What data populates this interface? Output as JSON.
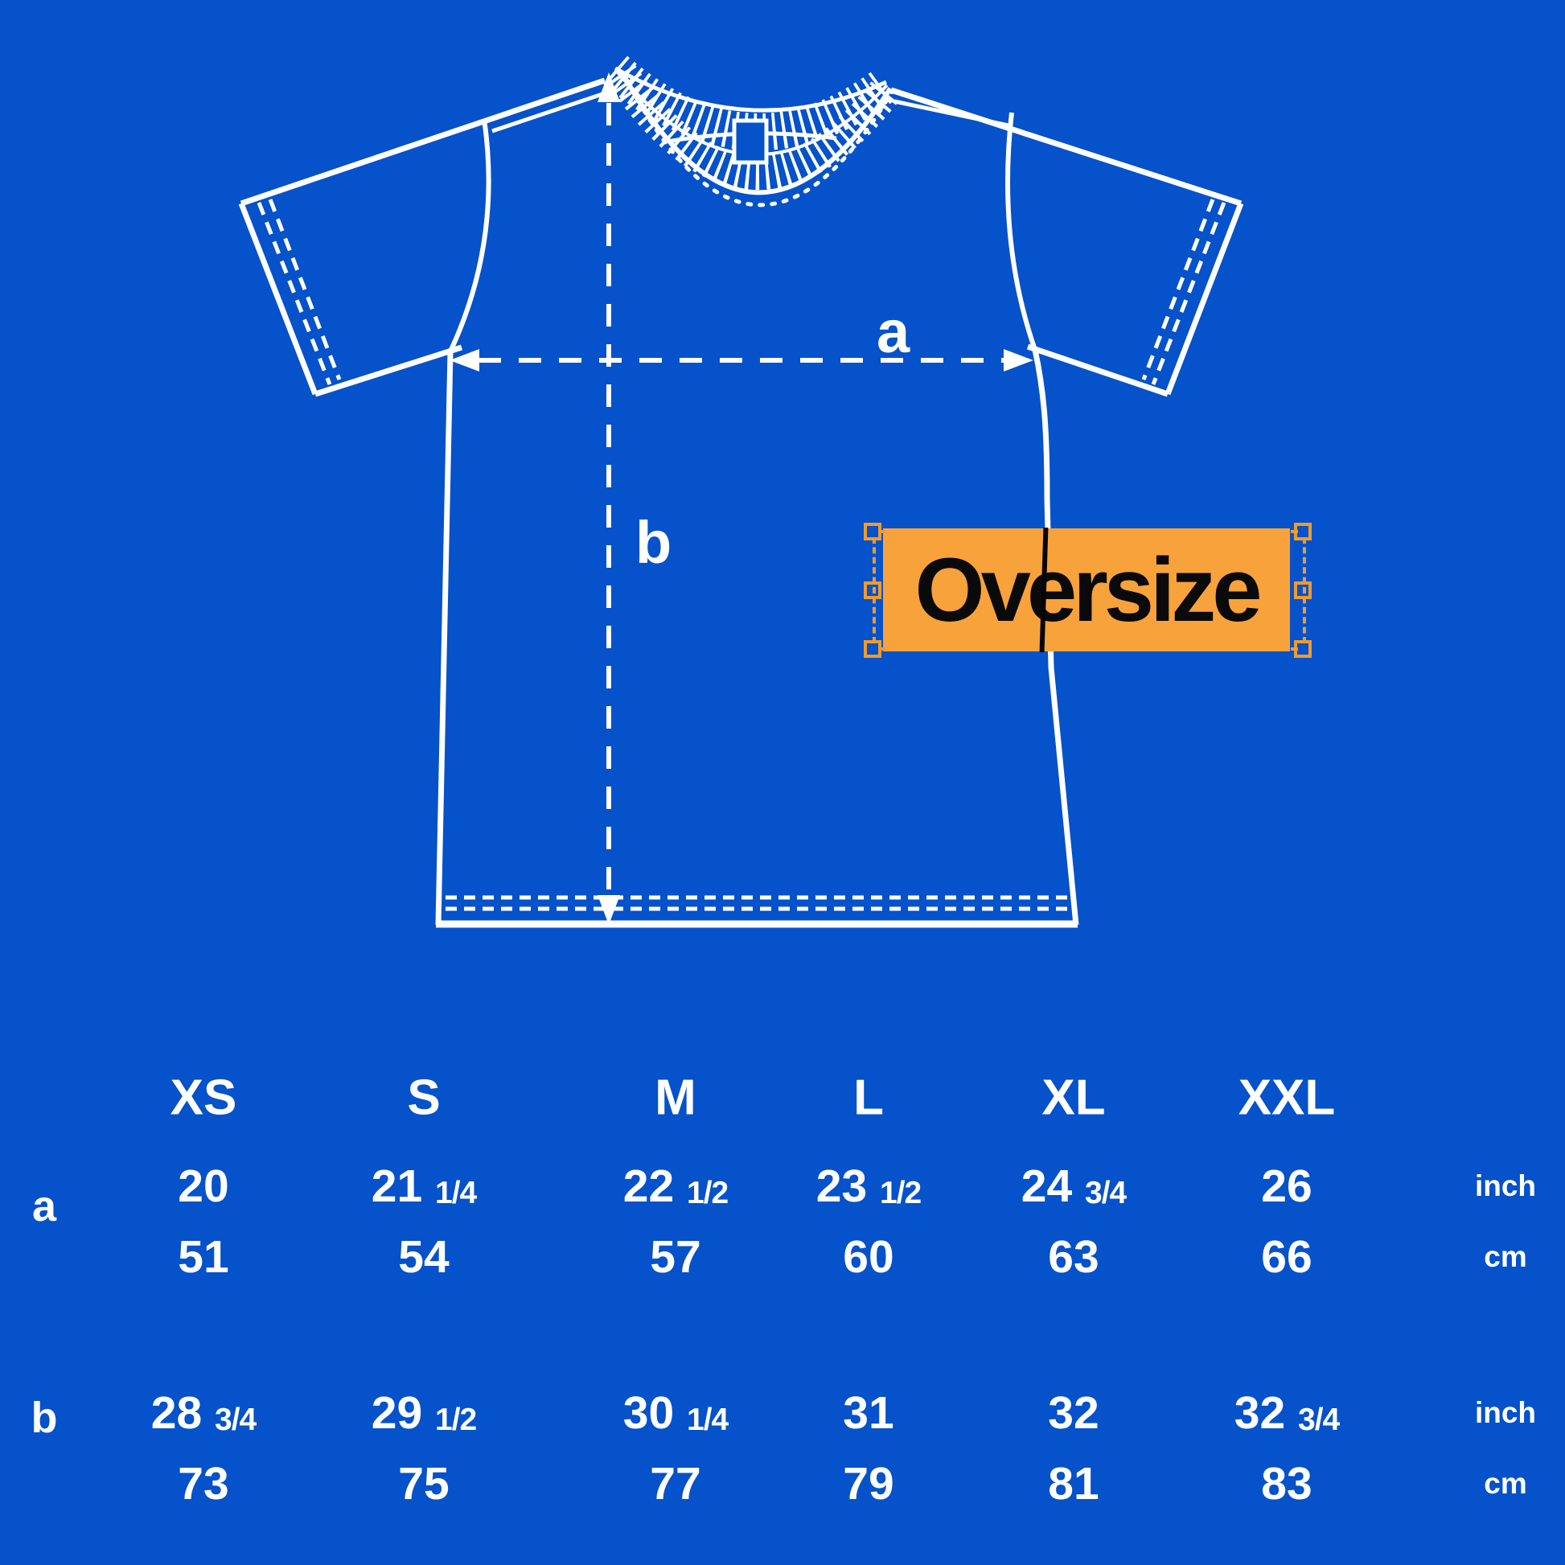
{
  "colors": {
    "background_blue": "#0552ca",
    "overlay_orange": "#f8a23c",
    "selection_handle_orange": "#ef9b2d",
    "line_white": "#ffffff",
    "text_black": "#0a0a0a"
  },
  "diagram": {
    "dimension_a_label": "a",
    "dimension_b_label": "b",
    "overlay_text": "Oversize"
  },
  "table": {
    "size_headers": [
      "XS",
      "S",
      "M",
      "L",
      "XL",
      "XXL"
    ],
    "unit_inch": "inch",
    "unit_cm": "cm",
    "rows": [
      {
        "label": "a",
        "inch_values": [
          "20",
          "21 1/4",
          "22 1/2",
          "23 1/2",
          "24 3/4",
          "26"
        ],
        "cm_values": [
          "51",
          "54",
          "57",
          "60",
          "63",
          "66"
        ]
      },
      {
        "label": "b",
        "inch_values": [
          "28 3/4",
          "29 1/2",
          "30 1/4",
          "31",
          "32",
          "32 3/4"
        ],
        "cm_values": [
          "73",
          "75",
          "77",
          "79",
          "81",
          "83"
        ]
      }
    ]
  }
}
